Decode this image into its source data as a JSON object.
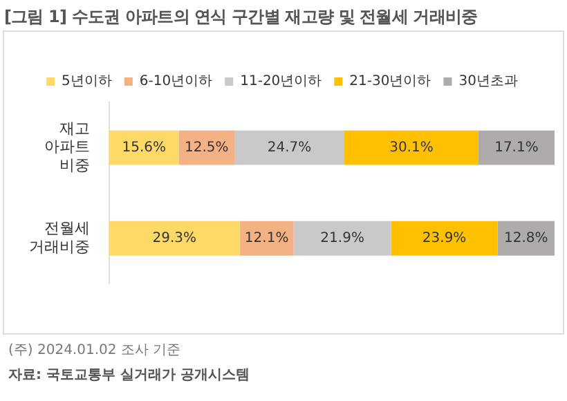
{
  "chart_data": {
    "type": "bar",
    "orientation": "horizontal",
    "stacked": true,
    "title": "[그림 1] 수도권 아파트의 연식 구간별 재고량 및 전월세 거래비중",
    "categories": [
      "재고\n아파트\n비중",
      "전월세\n거래비중"
    ],
    "series": [
      {
        "name": "5년이하",
        "color": "#ffd966",
        "values": [
          15.6,
          29.3
        ],
        "value_labels": [
          "15.6%",
          "29.3%"
        ]
      },
      {
        "name": "6-10년이하",
        "color": "#f4b183",
        "values": [
          12.5,
          12.1
        ],
        "value_labels": [
          "12.5%",
          "12.1%"
        ]
      },
      {
        "name": "11-20년이하",
        "color": "#c9c9c9",
        "values": [
          24.7,
          21.9
        ],
        "value_labels": [
          "24.7%",
          "21.9%"
        ]
      },
      {
        "name": "21-30년이하",
        "color": "#ffc000",
        "values": [
          30.1,
          23.9
        ],
        "value_labels": [
          "30.1%",
          "23.9%"
        ]
      },
      {
        "name": "30년초과",
        "color": "#afabab",
        "values": [
          17.1,
          12.8
        ],
        "value_labels": [
          "17.1%",
          "12.8%"
        ]
      }
    ],
    "xlim": [
      0,
      100
    ],
    "tick_labels": "y",
    "legend": "top",
    "annotations": [
      "(주) 2024.01.02 조사 기준",
      "자료: 국토교통부 실거래가 공개시스템"
    ]
  }
}
